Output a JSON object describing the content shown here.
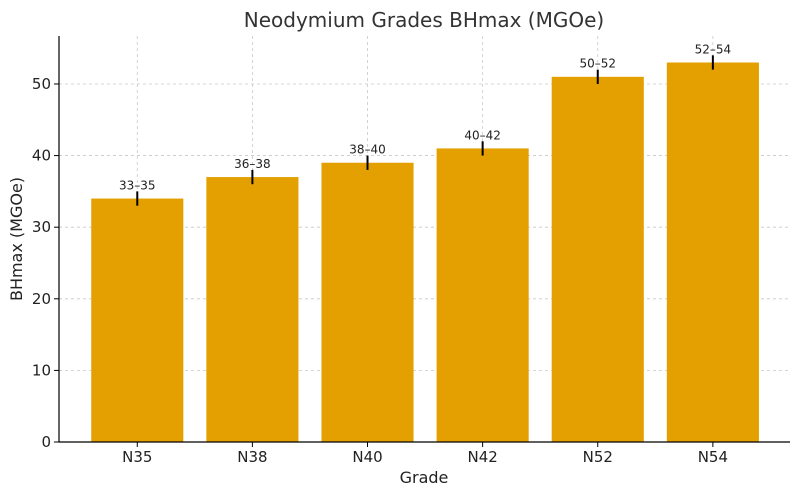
{
  "chart_data": {
    "type": "bar",
    "title": "Neodymium Grades BHmax (MGOe)",
    "xlabel": "Grade",
    "ylabel": "BHmax (MGOe)",
    "categories": [
      "N35",
      "N38",
      "N40",
      "N42",
      "N52",
      "N54"
    ],
    "values": [
      34,
      37,
      39,
      41,
      51,
      53
    ],
    "error_ranges": [
      [
        33,
        35
      ],
      [
        36,
        38
      ],
      [
        38,
        40
      ],
      [
        40,
        42
      ],
      [
        50,
        52
      ],
      [
        52,
        54
      ]
    ],
    "data_labels": [
      "33–35",
      "36–38",
      "38–40",
      "40–42",
      "50–52",
      "52–54"
    ],
    "ylim": [
      0,
      56.7
    ],
    "yticks": [
      0,
      10,
      20,
      30,
      40,
      50
    ],
    "grid": true,
    "bar_color": "#E3A000"
  }
}
